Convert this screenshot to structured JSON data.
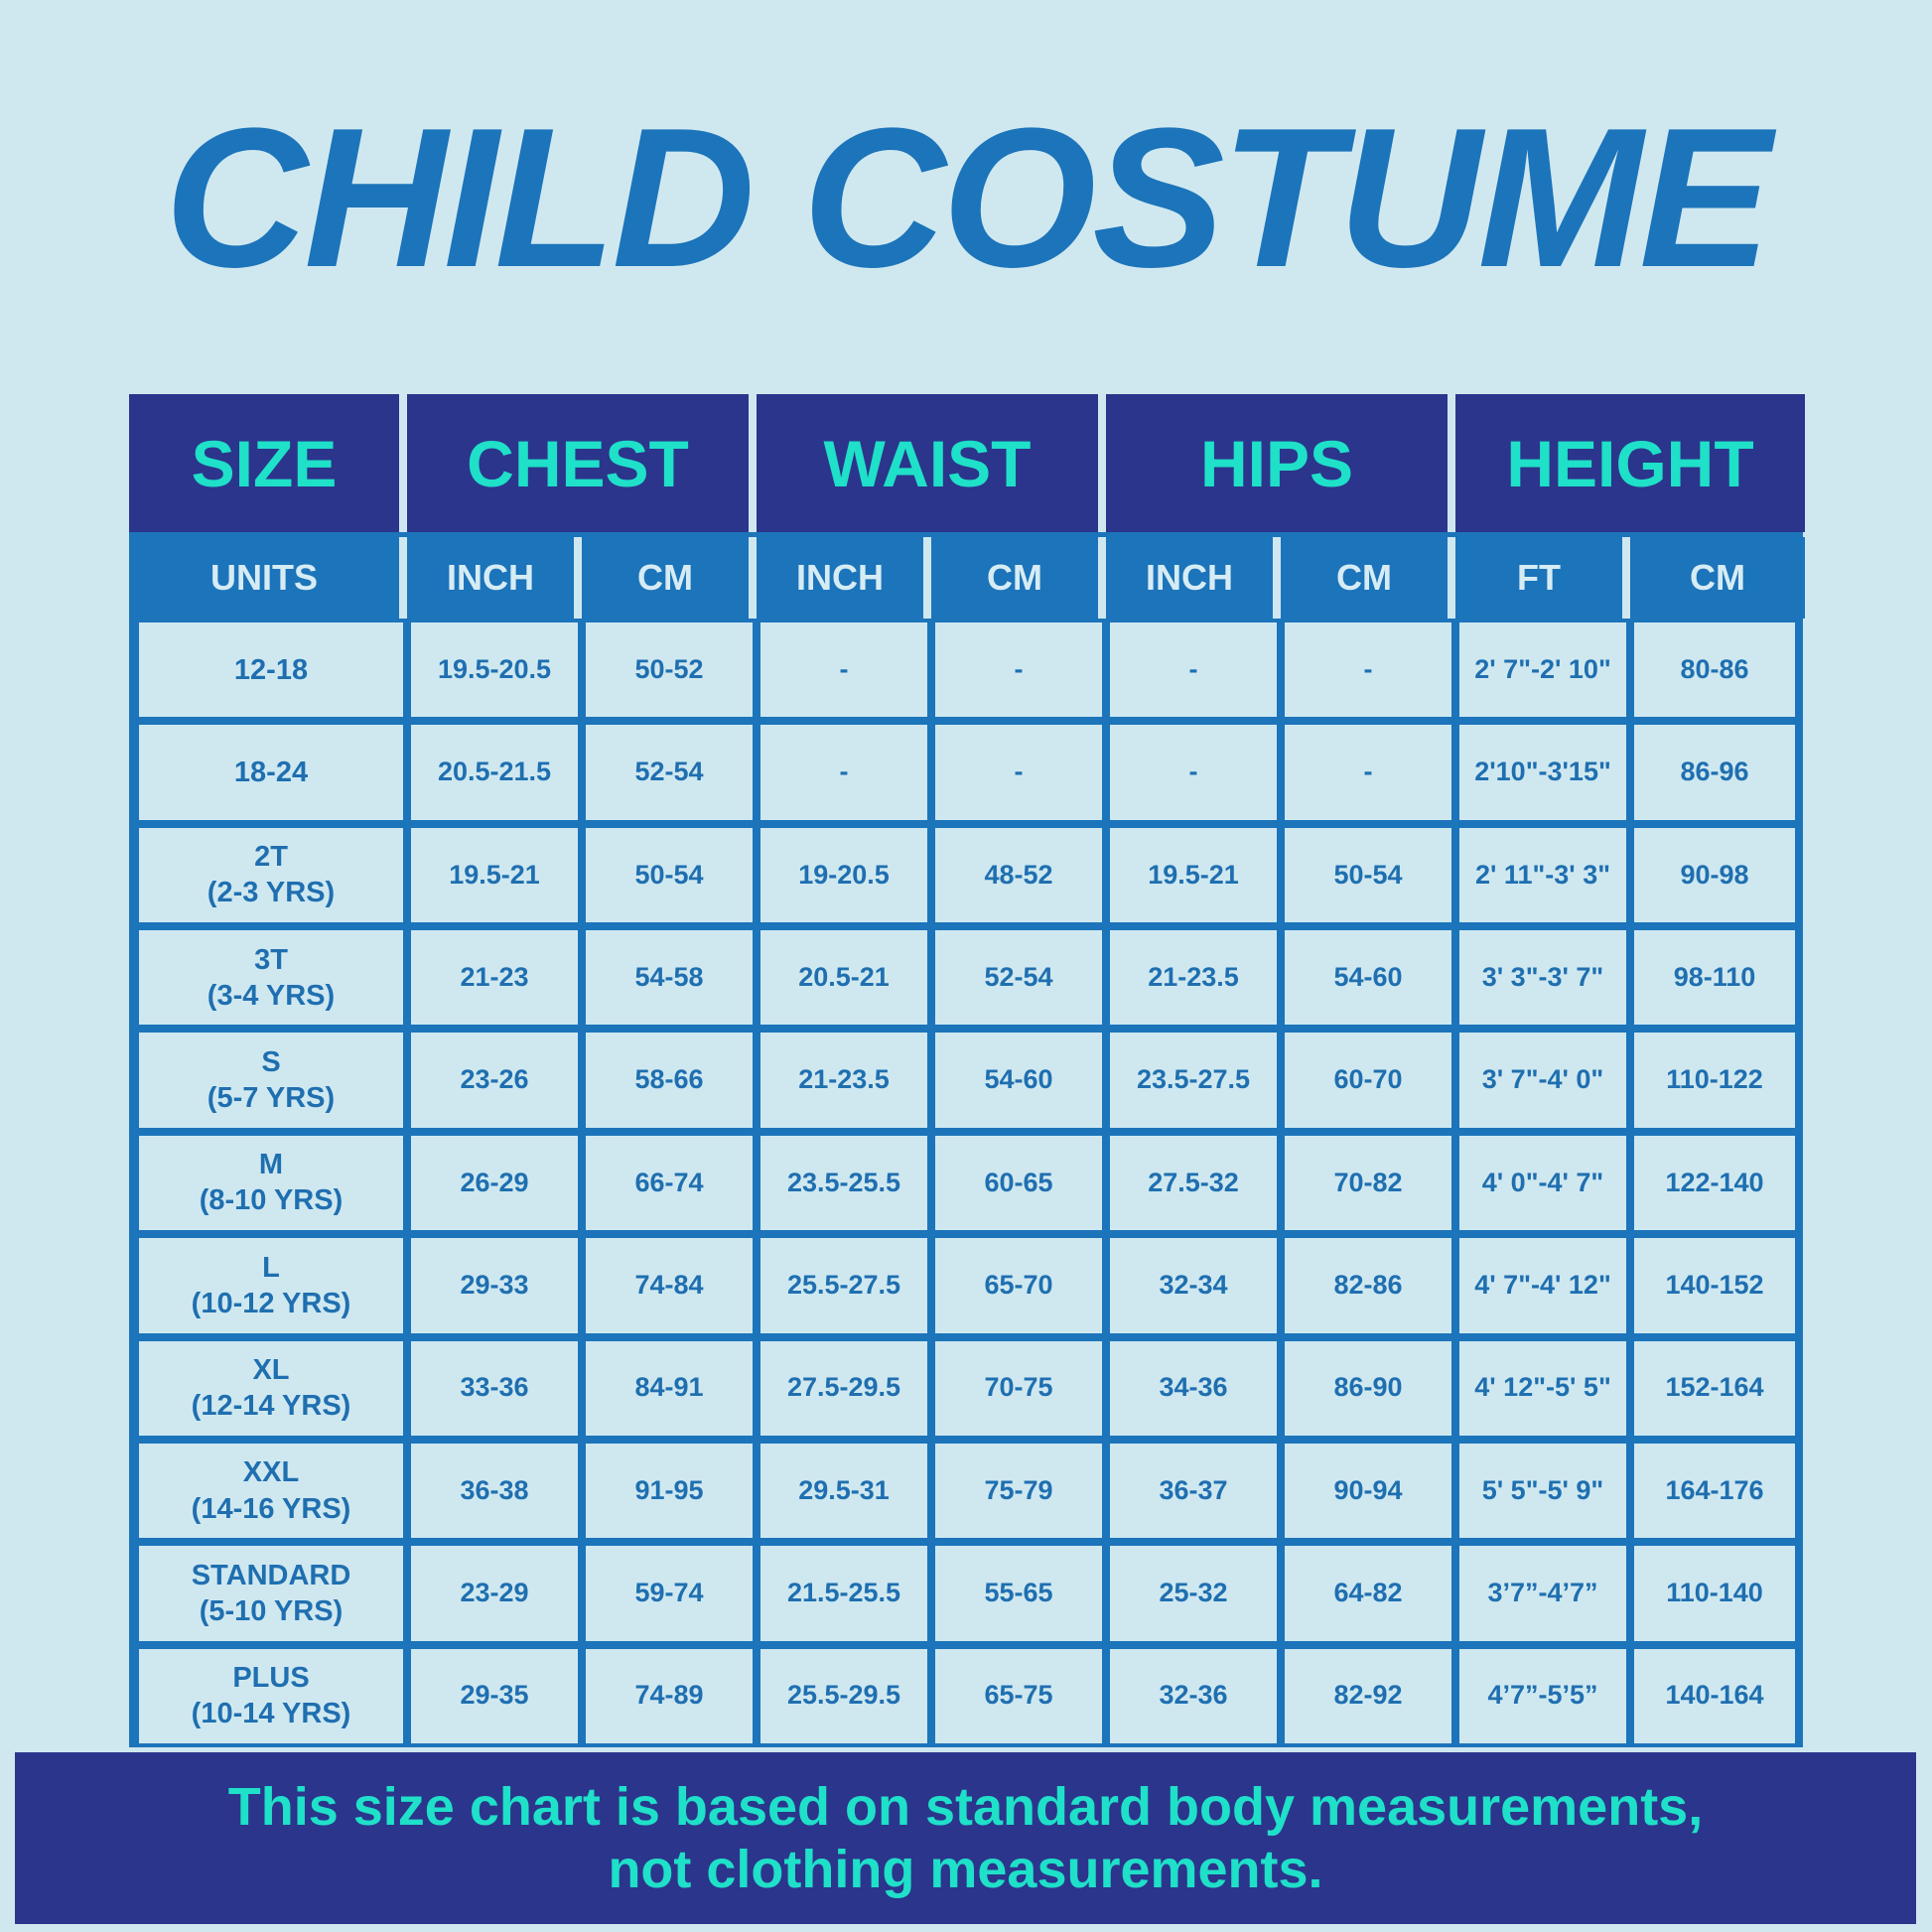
{
  "title": "CHILD COSTUME",
  "headers": [
    "SIZE",
    "CHEST",
    "WAIST",
    "HIPS",
    "HEIGHT"
  ],
  "units": [
    "UNITS",
    "INCH",
    "CM",
    "INCH",
    "CM",
    "INCH",
    "CM",
    "FT",
    "CM"
  ],
  "rows": [
    [
      "12-18",
      "19.5-20.5",
      "50-52",
      "-",
      "-",
      "-",
      "-",
      "2' 7\"-2' 10\"",
      "80-86"
    ],
    [
      "18-24",
      "20.5-21.5",
      "52-54",
      "-",
      "-",
      "-",
      "-",
      "2'10\"-3'15\"",
      "86-96"
    ],
    [
      "2T\n(2-3 YRS)",
      "19.5-21",
      "50-54",
      "19-20.5",
      "48-52",
      "19.5-21",
      "50-54",
      "2' 11\"-3' 3\"",
      "90-98"
    ],
    [
      "3T\n(3-4 YRS)",
      "21-23",
      "54-58",
      "20.5-21",
      "52-54",
      "21-23.5",
      "54-60",
      "3' 3\"-3' 7\"",
      "98-110"
    ],
    [
      "S\n(5-7 YRS)",
      "23-26",
      "58-66",
      "21-23.5",
      "54-60",
      "23.5-27.5",
      "60-70",
      "3' 7\"-4' 0\"",
      "110-122"
    ],
    [
      "M\n(8-10 YRS)",
      "26-29",
      "66-74",
      "23.5-25.5",
      "60-65",
      "27.5-32",
      "70-82",
      "4' 0\"-4' 7\"",
      "122-140"
    ],
    [
      "L\n(10-12 YRS)",
      "29-33",
      "74-84",
      "25.5-27.5",
      "65-70",
      "32-34",
      "82-86",
      "4' 7\"-4' 12\"",
      "140-152"
    ],
    [
      "XL\n(12-14 YRS)",
      "33-36",
      "84-91",
      "27.5-29.5",
      "70-75",
      "34-36",
      "86-90",
      "4' 12\"-5' 5\"",
      "152-164"
    ],
    [
      "XXL\n(14-16 YRS)",
      "36-38",
      "91-95",
      "29.5-31",
      "75-79",
      "36-37",
      "90-94",
      "5' 5\"-5' 9\"",
      "164-176"
    ],
    [
      "STANDARD\n(5-10 YRS)",
      "23-29",
      "59-74",
      "21.5-25.5",
      "55-65",
      "25-32",
      "64-82",
      "3’7”-4’7”",
      "110-140"
    ],
    [
      "PLUS\n(10-14 YRS)",
      "29-35",
      "74-89",
      "25.5-29.5",
      "65-75",
      "32-36",
      "82-92",
      "4’7”-5’5”",
      "140-164"
    ]
  ],
  "footer": {
    "line1": "This size chart is based on standard body measurements,",
    "line2": "not clothing measurements."
  },
  "colors": {
    "background": "#cfe8f0",
    "navy": "#2b358c",
    "accent": "#1fe0c8",
    "blue": "#1c74ba",
    "text": "#1f6fb0"
  }
}
